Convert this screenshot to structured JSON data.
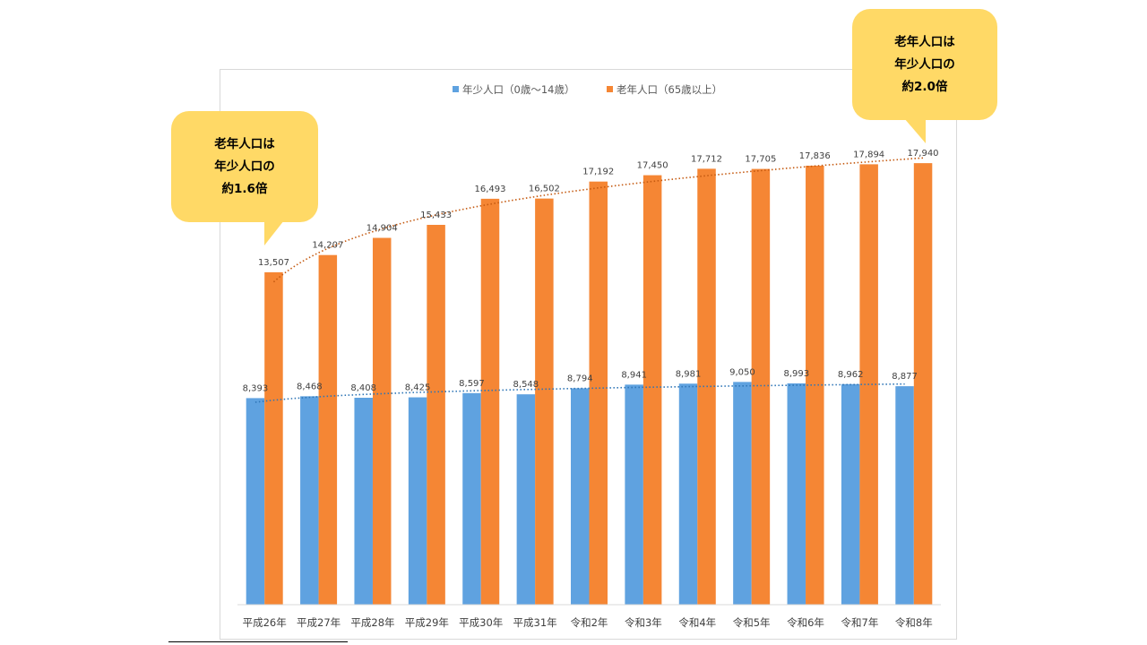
{
  "chart_data": {
    "type": "bar",
    "categories": [
      "平成26年",
      "平成27年",
      "平成28年",
      "平成29年",
      "平成30年",
      "平成31年",
      "令和2年",
      "令和3年",
      "令和4年",
      "令和5年",
      "令和6年",
      "令和7年",
      "令和8年"
    ],
    "series": [
      {
        "name": "年少人口（0歳～14歳）",
        "color": "#5fa2e0",
        "values": [
          8393,
          8468,
          8408,
          8425,
          8597,
          8548,
          8794,
          8941,
          8981,
          9050,
          8993,
          8962,
          8877
        ],
        "labels": [
          "8,393",
          "8,468",
          "8,408",
          "8,425",
          "8,597",
          "8,548",
          "8,794",
          "8,941",
          "8,981",
          "9,050",
          "8,993",
          "8,962",
          "8,877"
        ],
        "trendline": "logarithmic",
        "trend_color": "#2e75b6"
      },
      {
        "name": "老年人口（65歳以上）",
        "color": "#f58634",
        "values": [
          13507,
          14207,
          14904,
          15433,
          16493,
          16502,
          17192,
          17450,
          17712,
          17705,
          17836,
          17894,
          17940
        ],
        "labels": [
          "13,507",
          "14,207",
          "14,904",
          "15,433",
          "16,493",
          "16,502",
          "17,192",
          "17,450",
          "17,712",
          "17,705",
          "17,836",
          "17,894",
          "17,940"
        ],
        "trendline": "logarithmic",
        "trend_color": "#c55a11"
      }
    ],
    "ylim": [
      0,
      19000
    ],
    "grid": false,
    "legend": "top-center",
    "title": "",
    "xlabel": "",
    "ylabel": ""
  },
  "callouts": {
    "left": {
      "lines": [
        "老年人口は",
        "年少人口の",
        "約1.6倍"
      ]
    },
    "right": {
      "lines": [
        "老年人口は",
        "年少人口の",
        "約2.0倍"
      ]
    }
  }
}
